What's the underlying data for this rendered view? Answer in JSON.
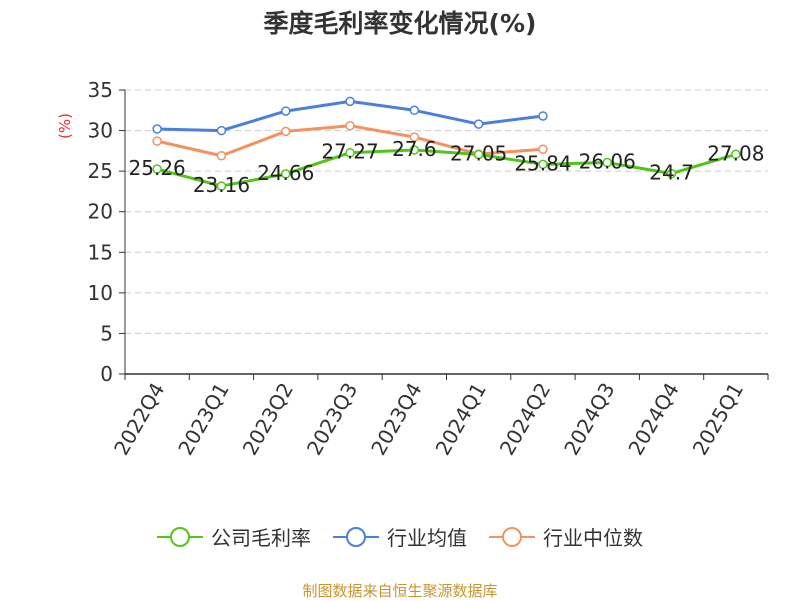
{
  "chart_data": {
    "type": "line",
    "title": "季度毛利率变化情况(%)",
    "ylabel": "(%)",
    "xlabel": "",
    "categories": [
      "2022Q4",
      "2023Q1",
      "2023Q2",
      "2023Q3",
      "2023Q4",
      "2024Q1",
      "2024Q2",
      "2024Q3",
      "2024Q4",
      "2025Q1"
    ],
    "ylim": [
      0,
      35
    ],
    "yticks": [
      0,
      5,
      10,
      15,
      20,
      25,
      30,
      35
    ],
    "grid": true,
    "legend_position": "bottom",
    "series": [
      {
        "name": "公司毛利率",
        "color": "#52c41a",
        "values": [
          25.26,
          23.16,
          24.66,
          27.27,
          27.6,
          27.05,
          25.84,
          26.06,
          24.7,
          27.08
        ],
        "labels": [
          "25.26",
          "23.16",
          "24.66",
          "27.27",
          "27.6",
          "27.05",
          "25.84",
          "26.06",
          "24.7",
          "27.08"
        ]
      },
      {
        "name": "行业均值",
        "color": "#4a7fdb",
        "values": [
          30.2,
          30.0,
          32.4,
          33.6,
          32.5,
          30.8,
          31.8,
          null,
          null,
          null
        ]
      },
      {
        "name": "行业中位数",
        "color": "#f4915e",
        "values": [
          28.7,
          26.9,
          29.9,
          30.6,
          29.2,
          27.1,
          27.7,
          null,
          null,
          null
        ]
      }
    ]
  },
  "source": "制图数据来自恒生聚源数据库"
}
